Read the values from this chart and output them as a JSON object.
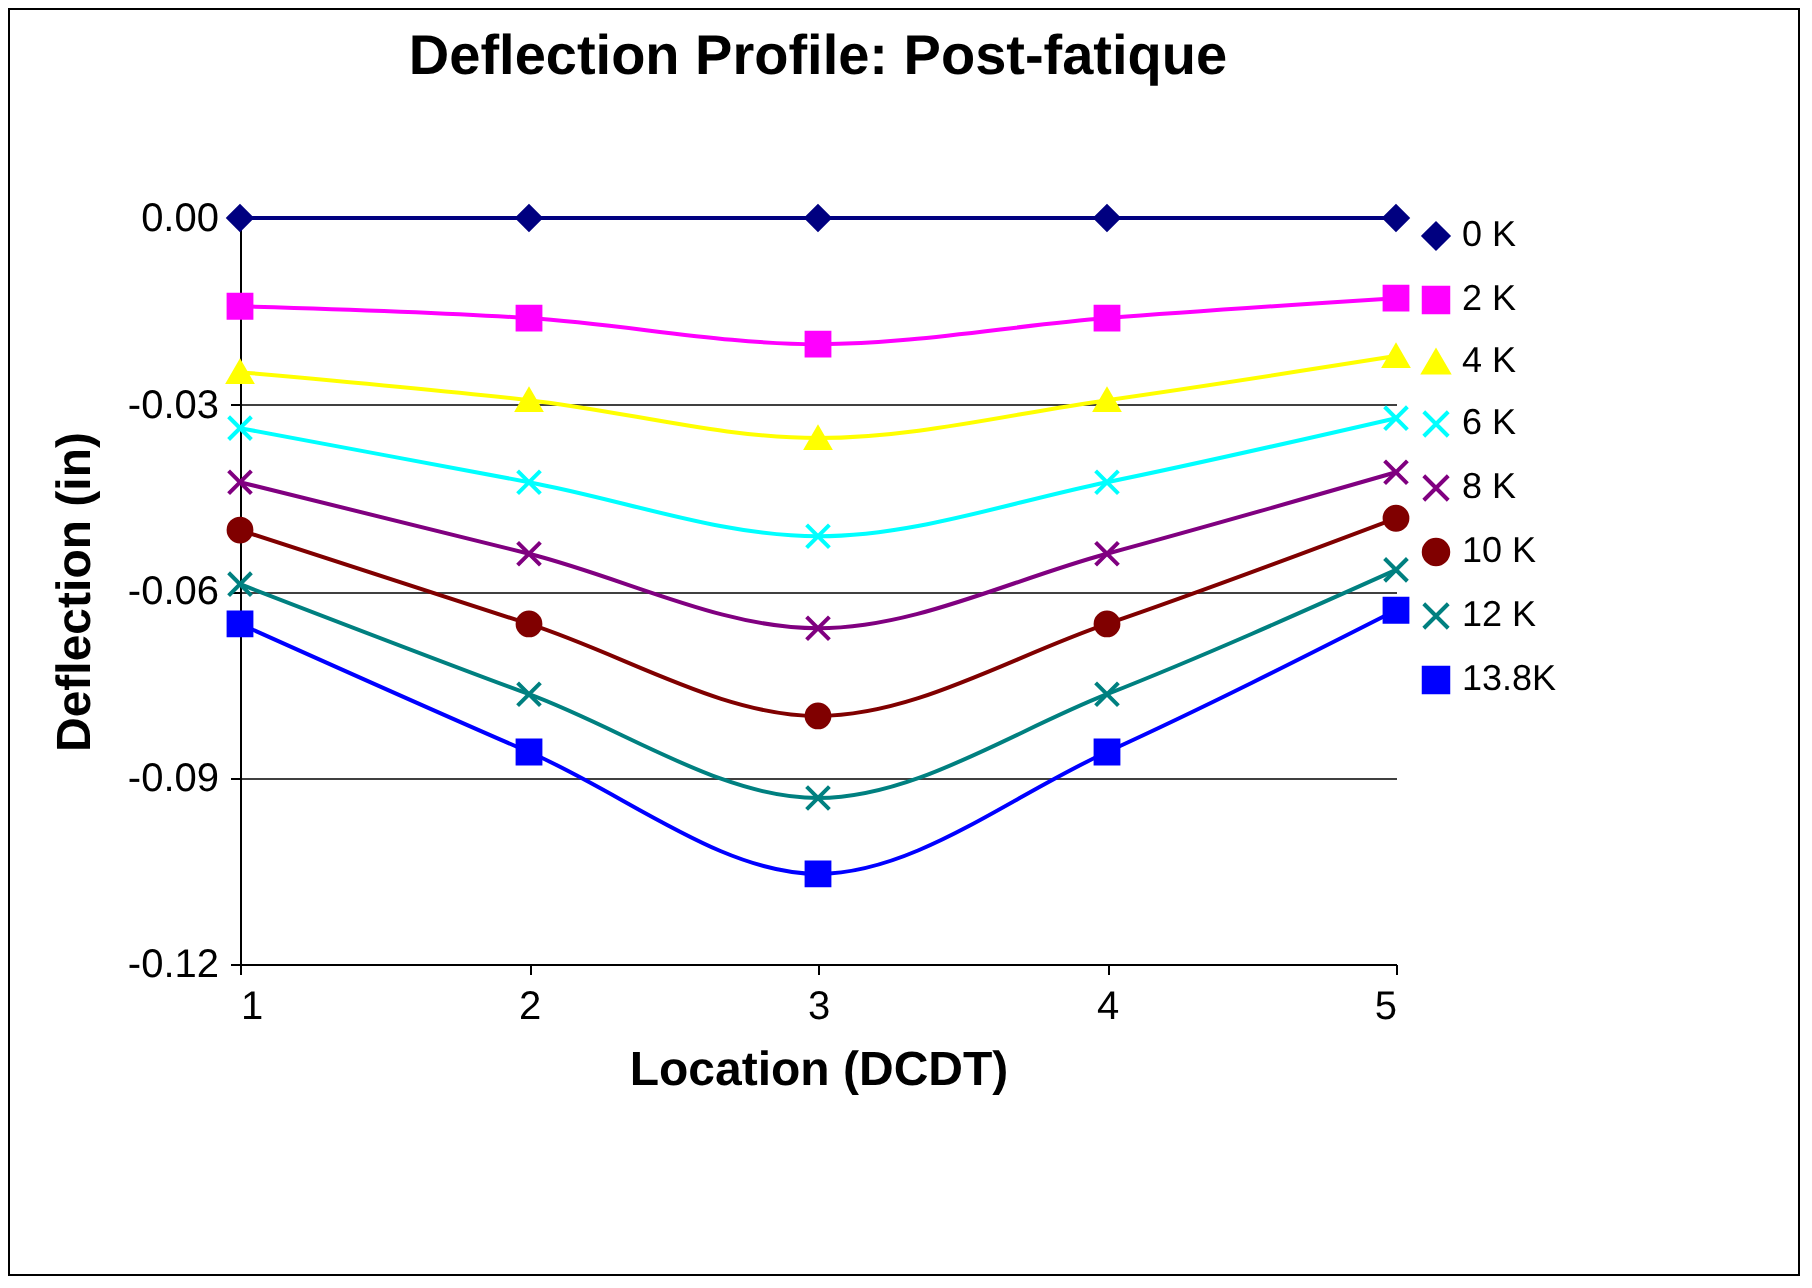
{
  "chart_data": {
    "type": "line",
    "title": "Deflection Profile: Post-fatique",
    "xlabel": "Location (DCDT)",
    "ylabel": "Deflection (in)",
    "x": [
      1,
      2,
      3,
      4,
      5
    ],
    "xlim": [
      1,
      5
    ],
    "xticks": [
      1,
      2,
      3,
      4,
      5
    ],
    "ylim": [
      -0.12,
      0
    ],
    "yticks": [
      {
        "value": 0,
        "label": "0.00"
      },
      -0.03,
      -0.06,
      -0.09,
      -0.12
    ],
    "grid": "y",
    "legend": "right",
    "series": [
      {
        "name": "0 K",
        "color": "#000080",
        "marker": "diamond",
        "values": [
          0,
          0,
          0,
          0,
          0
        ]
      },
      {
        "name": "2 K",
        "color": "#ff00ff",
        "marker": "square",
        "values": [
          -0.0142,
          -0.0161,
          -0.0203,
          -0.0161,
          -0.0129
        ]
      },
      {
        "name": "4 K",
        "color": "#ffff00",
        "marker": "triangle",
        "values": [
          -0.0248,
          -0.0293,
          -0.0354,
          -0.0293,
          -0.0222
        ]
      },
      {
        "name": "6 K",
        "color": "#00ffff",
        "marker": "cross",
        "values": [
          -0.0338,
          -0.0425,
          -0.0512,
          -0.0425,
          -0.0322
        ]
      },
      {
        "name": "8 K",
        "color": "#800080",
        "marker": "cross",
        "values": [
          -0.0425,
          -0.054,
          -0.066,
          -0.054,
          -0.0409
        ]
      },
      {
        "name": "10 K",
        "color": "#800000",
        "marker": "circle",
        "values": [
          -0.0502,
          -0.0653,
          -0.0801,
          -0.0653,
          -0.0483
        ]
      },
      {
        "name": "12 K",
        "color": "#008080",
        "marker": "cross",
        "values": [
          -0.0589,
          -0.0766,
          -0.0933,
          -0.0766,
          -0.0566
        ]
      },
      {
        "name": "13.8K",
        "color": "#0000ff",
        "marker": "square",
        "values": [
          -0.0653,
          -0.0859,
          -0.1055,
          -0.0859,
          -0.0631
        ]
      }
    ]
  }
}
